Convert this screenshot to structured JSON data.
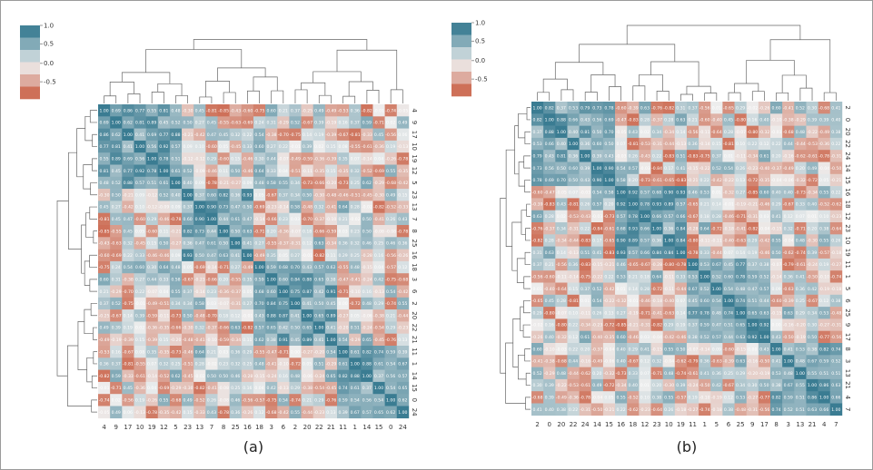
{
  "chart_data": [
    {
      "type": "heatmap",
      "caption": "(a)",
      "colorbar_ticks": [
        "1.0",
        "0.5",
        "0.0",
        "-0.5"
      ],
      "col_labels": [
        "4",
        "9",
        "17",
        "10",
        "19",
        "12",
        "5",
        "23",
        "13",
        "7",
        "8",
        "25",
        "16",
        "18",
        "3",
        "6",
        "2",
        "20",
        "22",
        "21",
        "11",
        "1",
        "14",
        "15",
        "0",
        "24"
      ],
      "row_labels": [
        "4",
        "9",
        "17",
        "10",
        "19",
        "12",
        "5",
        "23",
        "13",
        "7",
        "8",
        "25",
        "16",
        "18",
        "3",
        "6",
        "2",
        "20",
        "22",
        "21",
        "11",
        "1",
        "14",
        "15",
        "0",
        "24"
      ]
    },
    {
      "type": "heatmap",
      "caption": "(b)",
      "colorbar_ticks": [
        "1.0",
        "0.5",
        "0.0",
        "-0.5"
      ],
      "col_labels": [
        "2",
        "0",
        "20",
        "22",
        "24",
        "14",
        "15",
        "16",
        "18",
        "12",
        "23",
        "10",
        "19",
        "11",
        "1",
        "5",
        "6",
        "25",
        "9",
        "17",
        "8",
        "3",
        "13",
        "21",
        "4",
        "7"
      ],
      "row_labels": [
        "2",
        "0",
        "20",
        "22",
        "24",
        "14",
        "15",
        "16",
        "18",
        "12",
        "23",
        "10",
        "19",
        "11",
        "1",
        "5",
        "6",
        "25",
        "9",
        "17",
        "8",
        "3",
        "13",
        "21",
        "4",
        "7"
      ]
    }
  ]
}
